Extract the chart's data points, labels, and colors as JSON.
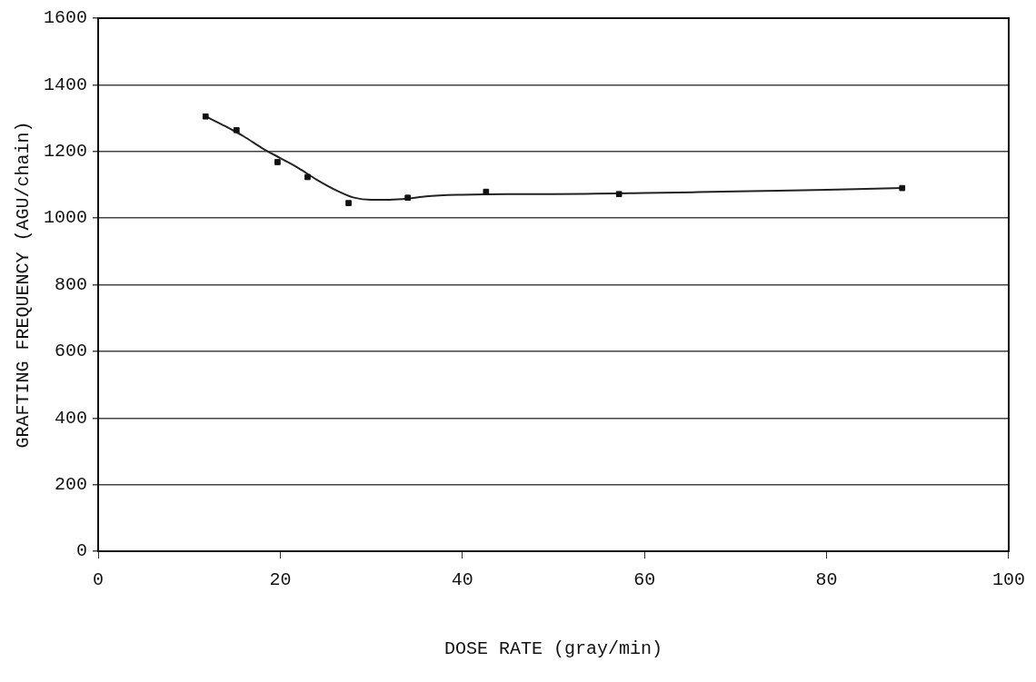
{
  "chart_data": {
    "type": "scatter",
    "xlabel": "DOSE RATE (gray/min)",
    "ylabel": "GRAFTING FREQUENCY (AGU/chain)",
    "xlim": [
      0,
      100
    ],
    "xticks": [
      0,
      20,
      40,
      60,
      80,
      100
    ],
    "ylim": [
      0,
      1600
    ],
    "yticks": [
      0,
      200,
      400,
      600,
      800,
      1000,
      1200,
      1400,
      1600
    ],
    "grid": "y",
    "legend": false,
    "series": [
      {
        "marker": "square",
        "color": "#111111",
        "x": [
          11.8,
          15.2,
          19.7,
          23.0,
          27.5,
          34.0,
          42.6,
          57.2,
          88.3
        ],
        "values": [
          1305,
          1264,
          1168,
          1123,
          1045,
          1061,
          1079,
          1072,
          1090
        ]
      },
      {
        "type": "line",
        "marker": "none",
        "color": "#222222",
        "line_style": "solid",
        "x": [
          11.8,
          14,
          16,
          18,
          20,
          22,
          24,
          26,
          28,
          30,
          32,
          34,
          36,
          40,
          45,
          50,
          60,
          70,
          80,
          88.3
        ],
        "values": [
          1305,
          1275,
          1245,
          1210,
          1180,
          1150,
          1115,
          1085,
          1062,
          1055,
          1055,
          1058,
          1065,
          1070,
          1072,
          1072,
          1075,
          1080,
          1085,
          1090
        ]
      }
    ]
  }
}
